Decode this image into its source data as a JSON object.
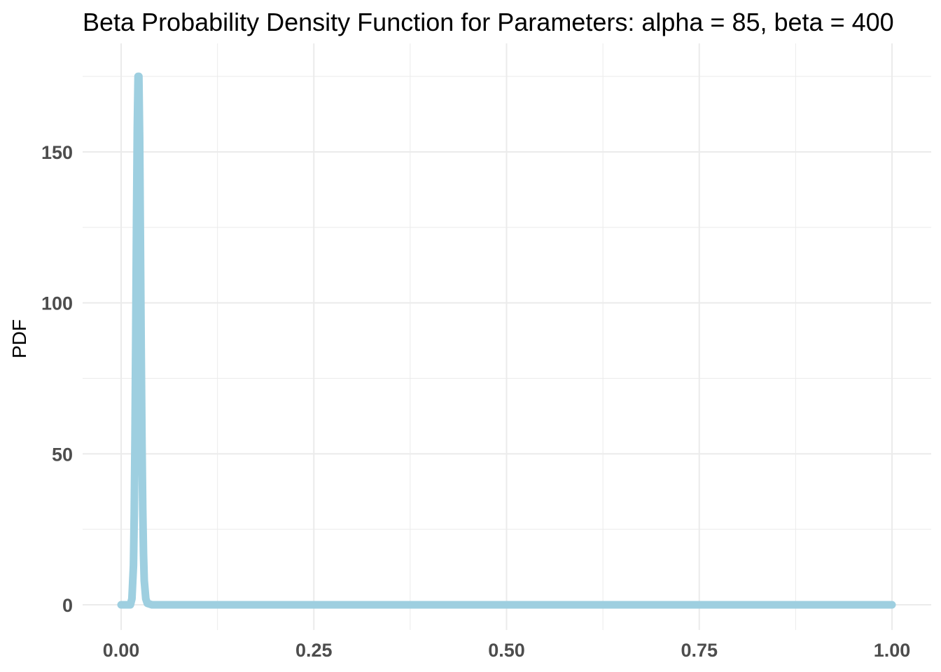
{
  "chart_data": {
    "type": "line",
    "title": "Beta Probability Density Function for Parameters: alpha = 85, beta = 400",
    "xlabel": "",
    "ylabel": "PDF",
    "xlim": [
      0,
      1
    ],
    "ylim": [
      0,
      176
    ],
    "x_ticks": [
      0,
      0.25,
      0.5,
      0.75,
      1
    ],
    "x_tick_labels": [
      "0.00",
      "0.25",
      "0.50",
      "0.75",
      "1.00"
    ],
    "y_ticks": [
      0,
      50,
      100,
      150
    ],
    "y_tick_labels": [
      "0",
      "50",
      "100",
      "150"
    ],
    "grid": true,
    "legend": "none",
    "colors": {
      "line": "#9ecfe0",
      "grid": "#ebebeb",
      "tick_text": "#4d4d4d",
      "title_text": "#000000"
    },
    "series": [
      {
        "x": [
          0,
          0.012,
          0.014,
          0.016,
          0.017,
          0.018,
          0.019,
          0.02,
          0.021,
          0.022,
          0.023,
          0.024,
          0.025,
          0.026,
          0.027,
          0.028,
          0.029,
          0.03,
          0.032,
          0.034,
          0.04,
          0.25,
          0.5,
          0.75,
          1.0
        ],
        "values": [
          0,
          0,
          2,
          13,
          30,
          55,
          90,
          128,
          158,
          175,
          175,
          155,
          120,
          85,
          55,
          32,
          17,
          8,
          2,
          0.5,
          0,
          0,
          0,
          0,
          0
        ]
      }
    ]
  }
}
